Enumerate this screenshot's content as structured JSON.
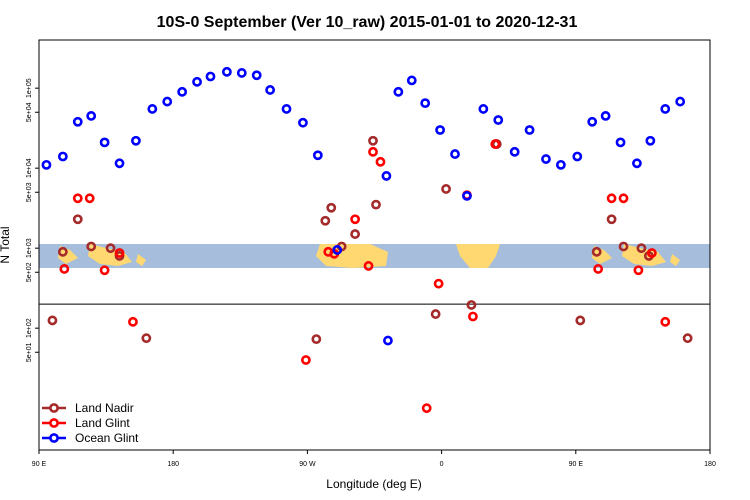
{
  "chart_data": {
    "type": "scatter",
    "title": "10S-0 September (Ver 10_raw)   2015-01-01 to 2020-12-31",
    "xlabel": "Longitude (deg E)",
    "ylabel": "N Total",
    "x_unwrapped_range": [
      90,
      540
    ],
    "y_scale": "log",
    "ylim": [
      3,
      400000
    ],
    "x_ticks": [
      {
        "x": 90,
        "label": "90 E"
      },
      {
        "x": 180,
        "label": "180"
      },
      {
        "x": 270,
        "label": "90 W"
      },
      {
        "x": 360,
        "label": "0"
      },
      {
        "x": 450,
        "label": "90 E"
      },
      {
        "x": 540,
        "label": "180"
      }
    ],
    "y_ticks": [
      {
        "y": 50,
        "label": "5e+01"
      },
      {
        "y": 100,
        "label": "1e+02"
      },
      {
        "y": 500,
        "label": "5e+02"
      },
      {
        "y": 1000,
        "label": "1e+03"
      },
      {
        "y": 5000,
        "label": "5e+03"
      },
      {
        "y": 10000,
        "label": "1e+04"
      },
      {
        "y": 50000,
        "label": "5e+04"
      },
      {
        "y": 100000,
        "label": "1e+05"
      }
    ],
    "grid": false,
    "legend_position": "bottom-left",
    "reference_line_y": 200,
    "map_band": [
      750,
      1250
    ],
    "series": [
      {
        "name": "Land Nadir",
        "color": "#a52a2a",
        "points": [
          [
            99,
            125
          ],
          [
            106,
            900
          ],
          [
            116,
            2300
          ],
          [
            125,
            1050
          ],
          [
            138,
            1000
          ],
          [
            144,
            800
          ],
          [
            162,
            75
          ],
          [
            276,
            73
          ],
          [
            282,
            2200
          ],
          [
            286,
            3200
          ],
          [
            293,
            1050
          ],
          [
            302,
            1500
          ],
          [
            314,
            22000
          ],
          [
            316,
            3500
          ],
          [
            356,
            150
          ],
          [
            363,
            5500
          ],
          [
            380,
            195
          ],
          [
            397,
            20000
          ],
          [
            453,
            125
          ],
          [
            464,
            900
          ],
          [
            474,
            2300
          ],
          [
            482,
            1050
          ],
          [
            494,
            1000
          ],
          [
            499,
            800
          ],
          [
            525,
            75
          ]
        ]
      },
      {
        "name": "Land Glint",
        "color": "#ff0000",
        "points": [
          [
            107,
            550
          ],
          [
            116,
            4200
          ],
          [
            124,
            4200
          ],
          [
            134,
            530
          ],
          [
            144,
            870
          ],
          [
            153,
            120
          ],
          [
            269,
            40
          ],
          [
            284,
            900
          ],
          [
            288,
            850
          ],
          [
            302,
            2300
          ],
          [
            311,
            600
          ],
          [
            314,
            16000
          ],
          [
            319,
            12000
          ],
          [
            350,
            10
          ],
          [
            358,
            360
          ],
          [
            377,
            4600
          ],
          [
            381,
            140
          ],
          [
            396,
            20000
          ],
          [
            465,
            550
          ],
          [
            474,
            4200
          ],
          [
            482,
            4200
          ],
          [
            492,
            530
          ],
          [
            501,
            870
          ],
          [
            510,
            120
          ]
        ]
      },
      {
        "name": "Ocean Glint",
        "color": "#0000ff",
        "points": [
          [
            95,
            11000
          ],
          [
            106,
            14000
          ],
          [
            116,
            38000
          ],
          [
            125,
            45000
          ],
          [
            134,
            21000
          ],
          [
            144,
            11500
          ],
          [
            155,
            22000
          ],
          [
            166,
            55000
          ],
          [
            176,
            68000
          ],
          [
            186,
            90000
          ],
          [
            196,
            120000
          ],
          [
            205,
            140000
          ],
          [
            216,
            160000
          ],
          [
            226,
            155000
          ],
          [
            236,
            145000
          ],
          [
            245,
            95000
          ],
          [
            256,
            55000
          ],
          [
            267,
            37000
          ],
          [
            277,
            14500
          ],
          [
            290,
            950
          ],
          [
            323,
            8000
          ],
          [
            324,
            70
          ],
          [
            331,
            90000
          ],
          [
            340,
            125000
          ],
          [
            349,
            65000
          ],
          [
            359,
            30000
          ],
          [
            369,
            15000
          ],
          [
            377,
            4500
          ],
          [
            388,
            55000
          ],
          [
            398,
            40000
          ],
          [
            409,
            16000
          ],
          [
            419,
            30000
          ],
          [
            430,
            13000
          ],
          [
            440,
            11000
          ],
          [
            451,
            14000
          ],
          [
            461,
            38000
          ],
          [
            470,
            45000
          ],
          [
            480,
            21000
          ],
          [
            491,
            11500
          ],
          [
            500,
            22000
          ],
          [
            510,
            55000
          ],
          [
            520,
            68000
          ]
        ]
      }
    ]
  }
}
